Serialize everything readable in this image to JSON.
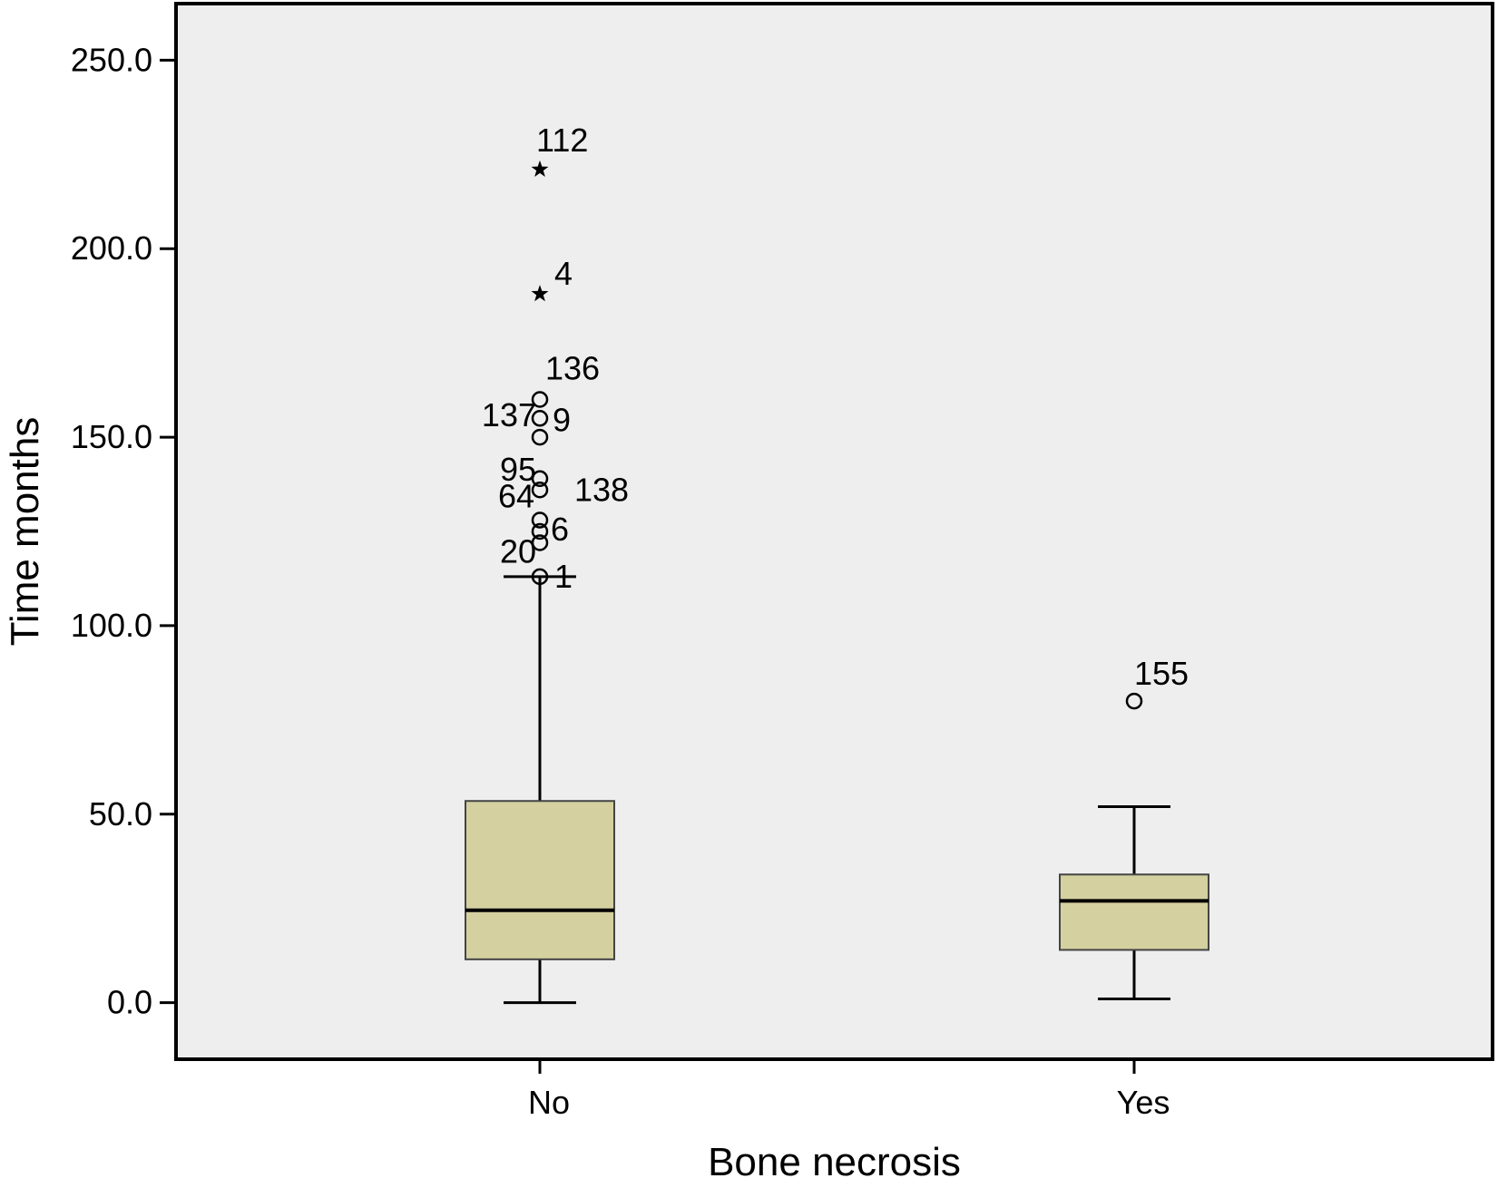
{
  "chart_data": {
    "type": "boxplot",
    "title": "",
    "xlabel": "Bone necrosis",
    "ylabel": "Time months",
    "ylim": [
      -15,
      265
    ],
    "yticks": [
      0,
      50,
      100,
      150,
      200,
      250
    ],
    "ytick_labels": [
      "0.0",
      "50.0",
      "100.0",
      "150.0",
      "200.0",
      "250.0"
    ],
    "grid": false,
    "plot_background": "#eeeeee",
    "box_color": "#d4d0a0",
    "categories": [
      "No",
      "Yes"
    ],
    "boxes": [
      {
        "category": "No",
        "whisker_low": 0,
        "q1": 11.5,
        "median": 24.5,
        "q3": 53.5,
        "whisker_high": 113,
        "outliers": [
          {
            "value": 221,
            "label": "112",
            "marker": "star"
          },
          {
            "value": 188,
            "label": "4",
            "marker": "star"
          },
          {
            "value": 160,
            "label": "136",
            "marker": "circle"
          },
          {
            "value": 155,
            "label": "9",
            "marker": "circle"
          },
          {
            "value": 150,
            "label": "137",
            "marker": "circle"
          },
          {
            "value": 139,
            "label": "95",
            "marker": "circle"
          },
          {
            "value": 136,
            "label": "138",
            "marker": "circle"
          },
          {
            "value": 128,
            "label": "64",
            "marker": "circle"
          },
          {
            "value": 125,
            "label": "6",
            "marker": "circle"
          },
          {
            "value": 122,
            "label": "20",
            "marker": "circle"
          },
          {
            "value": 113,
            "label": "1",
            "marker": "circle"
          }
        ]
      },
      {
        "category": "Yes",
        "whisker_low": 1,
        "q1": 14,
        "median": 27,
        "q3": 34,
        "whisker_high": 52,
        "outliers": [
          {
            "value": 80,
            "label": "155",
            "marker": "circle"
          }
        ]
      }
    ]
  }
}
